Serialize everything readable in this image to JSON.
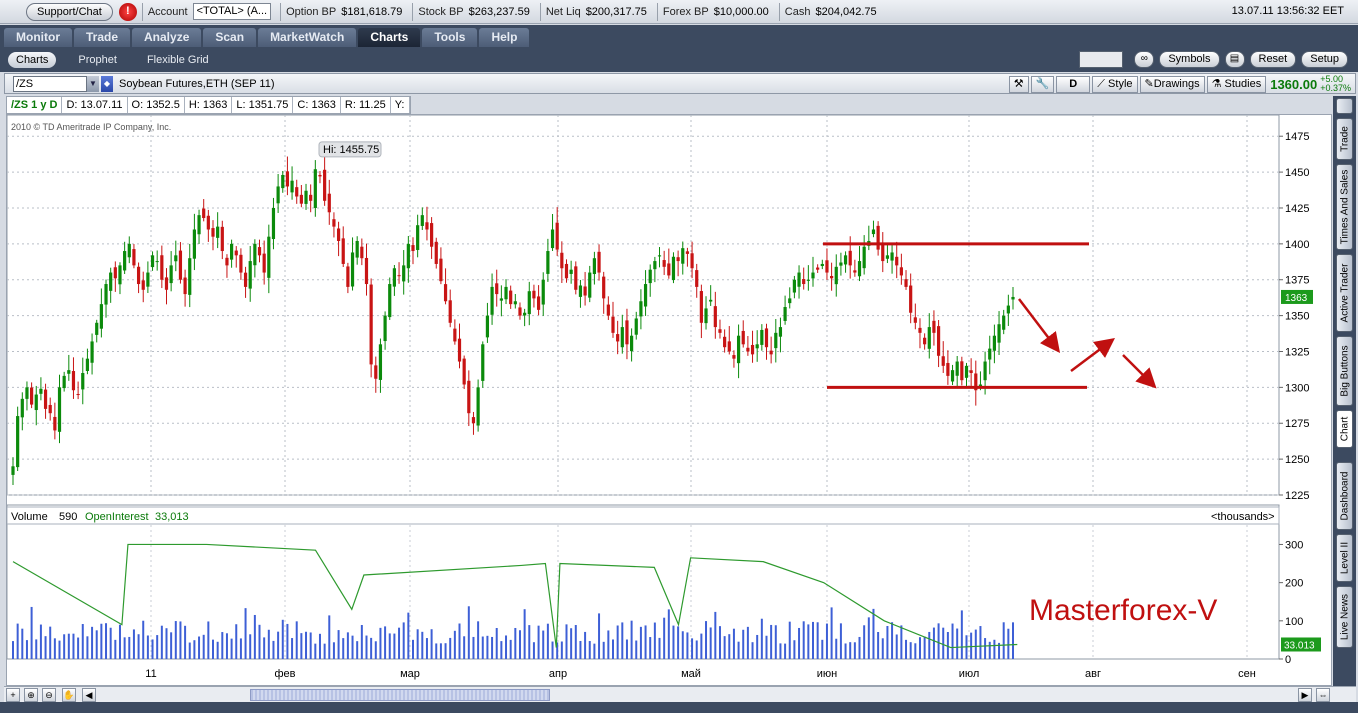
{
  "topbar": {
    "support": "Support/Chat",
    "alert": "!",
    "account_label": "Account",
    "account_value": "<TOTAL> (A...",
    "items": [
      {
        "label": "Option BP",
        "value": "$181,618.79"
      },
      {
        "label": "Stock BP",
        "value": "$263,237.59"
      },
      {
        "label": "Net Liq",
        "value": "$200,317.75"
      },
      {
        "label": "Forex BP",
        "value": "$10,000.00"
      },
      {
        "label": "Cash",
        "value": "$204,042.75"
      }
    ],
    "clock": "13.07.11 13:56:32 EET"
  },
  "tabs": [
    "Monitor",
    "Trade",
    "Analyze",
    "Scan",
    "MarketWatch",
    "Charts",
    "Tools",
    "Help"
  ],
  "active_tab": "Charts",
  "subtabs": [
    "Charts",
    "Prophet",
    "Flexible Grid"
  ],
  "subbar": {
    "symbols": "Symbols",
    "reset": "Reset",
    "setup": "Setup"
  },
  "symbol_row": {
    "symbol": "/ZS",
    "description": "Soybean Futures,ETH (SEP 11)",
    "d_btn": "D",
    "style": "Style",
    "drawings": "Drawings",
    "studies": "Studies",
    "last": "1360.00",
    "chg_abs": "+5.00",
    "chg_pct": "+0.37%"
  },
  "infobar": [
    "/ZS 1 y D",
    "D: 13.07.11",
    "O: 1352.5",
    "H: 1363",
    "L: 1351.75",
    "C: 1363",
    "R: 11.25",
    "Y:"
  ],
  "copyright": "2010 © TD Ameritrade IP Company, Inc.",
  "hi_label": "Hi: 1455.75",
  "price_tag": "1363",
  "oi_tag": "33.013",
  "watermark": "Masterforex-V",
  "volume_header": {
    "volume": "Volume",
    "volume_value": "590",
    "oi": "OpenInterest",
    "oi_value": "33,013",
    "units": "<thousands>"
  },
  "side_tabs": [
    "Trade",
    "Times And Sales",
    "Active Trader",
    "Big Buttons",
    "Chart",
    "Dashboard",
    "Level II",
    "Live News"
  ],
  "colors": {
    "up": "#0b8a0b",
    "down": "#c81414",
    "volume": "#3d5fd6",
    "oi": "#2e9a2e",
    "annotation": "#c01010",
    "watermark": "#c01010"
  },
  "chart_data": [
    {
      "type": "candlestick",
      "x_tick_labels": [
        "11",
        "фев",
        "мар",
        "апр",
        "май",
        "июн",
        "июл",
        "авг",
        "сен"
      ],
      "ylim": [
        1225,
        1487
      ],
      "y_ticks": [
        1225,
        1250,
        1275,
        1300,
        1325,
        1350,
        1375,
        1400,
        1425,
        1450,
        1475
      ],
      "grid": true,
      "annotations": {
        "resistance": 1400,
        "support": 1300,
        "hi": 1455.75
      },
      "closes": [
        1245,
        1280,
        1292,
        1300,
        1288,
        1295,
        1299,
        1285,
        1282,
        1270,
        1300,
        1308,
        1312,
        1298,
        1295,
        1310,
        1320,
        1332,
        1345,
        1358,
        1372,
        1380,
        1376,
        1385,
        1395,
        1400,
        1385,
        1372,
        1368,
        1380,
        1392,
        1388,
        1375,
        1368,
        1385,
        1392,
        1375,
        1365,
        1390,
        1410,
        1420,
        1418,
        1410,
        1405,
        1412,
        1395,
        1385,
        1400,
        1392,
        1380,
        1370,
        1388,
        1400,
        1392,
        1380,
        1405,
        1425,
        1440,
        1448,
        1440,
        1444,
        1433,
        1428,
        1437,
        1430,
        1452,
        1447,
        1430,
        1422,
        1412,
        1402,
        1386,
        1370,
        1394,
        1402,
        1390,
        1372,
        1316,
        1306,
        1330,
        1350,
        1372,
        1383,
        1378,
        1385,
        1400,
        1395,
        1413,
        1420,
        1410,
        1398,
        1386,
        1374,
        1360,
        1345,
        1332,
        1318,
        1302,
        1282,
        1275,
        1300,
        1330,
        1350,
        1370,
        1365,
        1362,
        1370,
        1358,
        1360,
        1350,
        1352,
        1367,
        1362,
        1354,
        1375,
        1395,
        1410,
        1396,
        1383,
        1376,
        1382,
        1368,
        1371,
        1364,
        1380,
        1390,
        1380,
        1362,
        1350,
        1338,
        1332,
        1342,
        1330,
        1336,
        1348,
        1360,
        1372,
        1382,
        1388,
        1392,
        1384,
        1378,
        1391,
        1388,
        1397,
        1393,
        1383,
        1370,
        1345,
        1355,
        1361,
        1342,
        1338,
        1328,
        1325,
        1320,
        1336,
        1330,
        1325,
        1323,
        1330,
        1340,
        1328,
        1323,
        1338,
        1342,
        1356,
        1362,
        1375,
        1380,
        1372,
        1375,
        1380,
        1382,
        1386,
        1380,
        1376,
        1384,
        1387,
        1392,
        1385,
        1380,
        1388,
        1398,
        1402,
        1410,
        1396,
        1388,
        1392,
        1394,
        1385,
        1378,
        1370,
        1352,
        1345,
        1338,
        1330,
        1342,
        1338,
        1322,
        1315,
        1308,
        1312,
        1318,
        1305,
        1315,
        1310,
        1298,
        1302,
        1318,
        1327,
        1336,
        1344,
        1350,
        1357,
        1363
      ],
      "ohlc_generated": true
    },
    {
      "type": "bar+line",
      "series": [
        {
          "name": "Volume",
          "values_source": "per-bar"
        },
        {
          "name": "OpenInterest",
          "keypoints": [
            [
              0,
              255
            ],
            [
              0.09,
              90
            ],
            [
              0.095,
              300
            ],
            [
              0.16,
              300
            ],
            [
              0.25,
              285
            ],
            [
              0.28,
              130
            ],
            [
              0.29,
              220
            ],
            [
              0.42,
              245
            ],
            [
              0.44,
              250
            ],
            [
              0.449,
              30
            ],
            [
              0.452,
              250
            ],
            [
              0.53,
              240
            ],
            [
              0.55,
              90
            ],
            [
              0.56,
              265
            ],
            [
              0.62,
              255
            ],
            [
              0.67,
              200
            ],
            [
              0.72,
              100
            ],
            [
              0.775,
              30
            ],
            [
              0.83,
              38
            ]
          ]
        }
      ],
      "ylim": [
        0,
        330
      ],
      "y_ticks": [
        0,
        100,
        200,
        300
      ]
    }
  ]
}
